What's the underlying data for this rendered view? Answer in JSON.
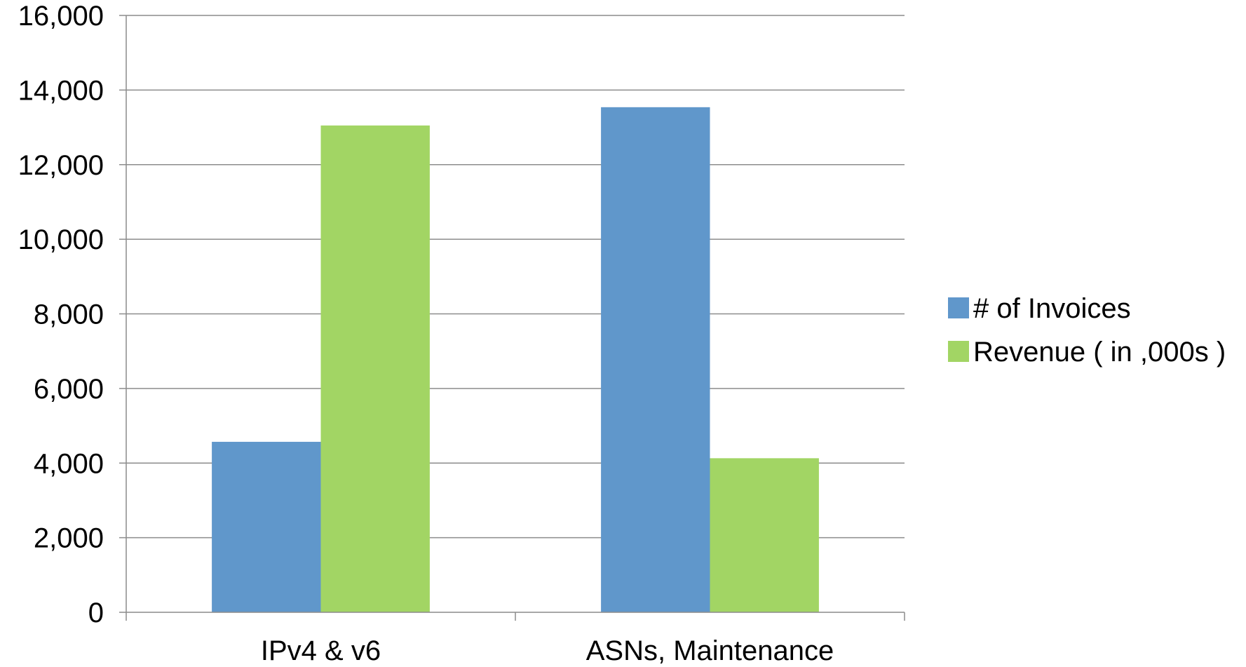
{
  "chart_data": {
    "type": "bar",
    "categories": [
      "IPv4 & v6",
      "ASNs, Maintenance"
    ],
    "series": [
      {
        "name": "# of Invoices",
        "color": "#6097cb",
        "values": [
          4570,
          13540
        ]
      },
      {
        "name": "Revenue ( in ,000s )",
        "color": "#a2d564",
        "values": [
          13050,
          4130
        ]
      }
    ],
    "y_ticks": [
      "0",
      "2,000",
      "4,000",
      "6,000",
      "8,000",
      "10,000",
      "12,000",
      "14,000",
      "16,000"
    ],
    "ylim": [
      0,
      16000
    ],
    "y_step": 2000,
    "grid": true,
    "legend_position": "right",
    "gridline_color": "#8c8c8c",
    "axis_color": "#8c8c8c"
  }
}
